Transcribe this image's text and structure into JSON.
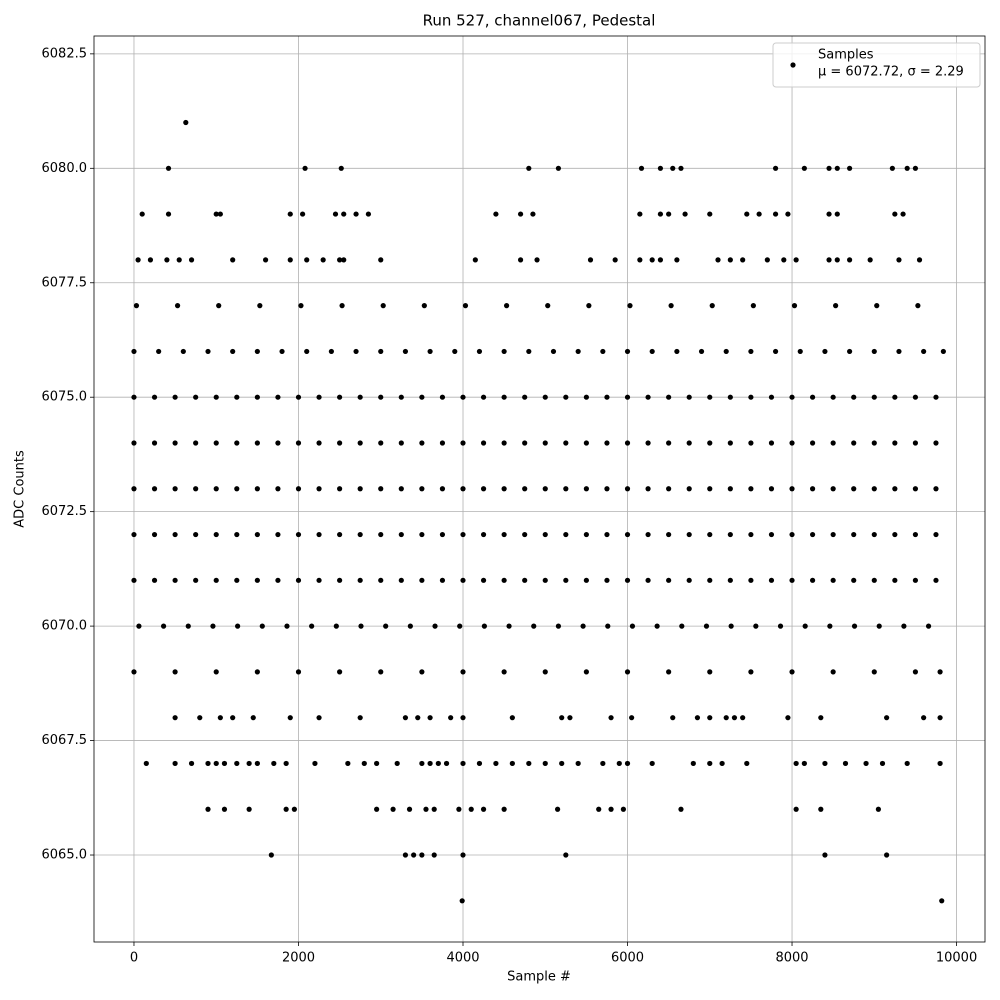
{
  "chart_data": {
    "type": "scatter",
    "title": "Run 527, channel067, Pedestal",
    "x_label": "Sample #",
    "y_label": "ADC Counts",
    "xlim": [
      -486,
      10346
    ],
    "ylim": [
      6063.1,
      6082.89
    ],
    "xticks": [
      0,
      2000,
      4000,
      6000,
      8000,
      10000
    ],
    "yticks": [
      {
        "value": 6065,
        "label": "6065.0"
      },
      {
        "value": 6067.5,
        "label": "6067.5"
      },
      {
        "value": 6070,
        "label": "6070.0"
      },
      {
        "value": 6072.5,
        "label": "6072.5"
      },
      {
        "value": 6075,
        "label": "6075.0"
      },
      {
        "value": 6077.5,
        "label": "6077.5"
      },
      {
        "value": 6080,
        "label": "6080.0"
      },
      {
        "value": 6082.5,
        "label": "6082.5"
      }
    ],
    "grid": true,
    "legend": "upper right",
    "annotation": "μ = 6072.72, σ = 2.29",
    "x": [
      0,
      250,
      500,
      750,
      1000,
      1250,
      1500,
      1750,
      2000,
      2250,
      2500,
      2750,
      3000,
      3250,
      3500,
      3750,
      4000,
      4250,
      4500,
      4750,
      5000,
      5250,
      5500,
      5750,
      6000,
      6250,
      6500,
      6750,
      7000,
      7250,
      7500,
      7750,
      8000,
      8250,
      8500,
      8750,
      9000,
      9250,
      9500,
      9750,
      0,
      250,
      500,
      750,
      1000,
      1250,
      1500,
      1750,
      2000,
      2250,
      2500,
      2750,
      3000,
      3250,
      3500,
      3750,
      4000,
      4250,
      4500,
      4750,
      5000,
      5250,
      5500,
      5750,
      6000,
      6250,
      6500,
      6750,
      7000,
      7250,
      7500,
      7750,
      8000,
      8250,
      8500,
      8750,
      9000,
      9250,
      9500,
      9750,
      0,
      250,
      500,
      750,
      1000,
      1250,
      1500,
      1750,
      2000,
      2250,
      2500,
      2750,
      3000,
      3250,
      3500,
      3750,
      4000,
      4250,
      4500,
      4750,
      5000,
      5250,
      5500,
      5750,
      6000,
      6250,
      6500,
      6750,
      7000,
      7250,
      7500,
      7750,
      8000,
      8250,
      8500,
      8750,
      9000,
      9250,
      9500,
      9750,
      0,
      250,
      500,
      750,
      1000,
      1250,
      1500,
      1750,
      2000,
      2250,
      2500,
      2750,
      3000,
      3250,
      3500,
      3750,
      4000,
      4250,
      4500,
      4750,
      5000,
      5250,
      5500,
      5750,
      6000,
      6250,
      6500,
      6750,
      7000,
      7250,
      7500,
      7750,
      8000,
      8250,
      8500,
      8750,
      9000,
      9250,
      9500,
      9750,
      0,
      250,
      500,
      750,
      1000,
      1250,
      1500,
      1750,
      2000,
      2250,
      2500,
      2750,
      3000,
      3250,
      3500,
      3750,
      4000,
      4250,
      4500,
      4750,
      5000,
      5250,
      5500,
      5750,
      6000,
      6250,
      6500,
      6750,
      7000,
      7250,
      7500,
      7750,
      8000,
      8250,
      8500,
      8750,
      9000,
      9250,
      9500,
      9750,
      0,
      300,
      600,
      900,
      1200,
      1500,
      1800,
      2100,
      2400,
      2700,
      3000,
      3300,
      3600,
      3900,
      4200,
      4500,
      4800,
      5100,
      5400,
      5700,
      6000,
      6300,
      6600,
      6900,
      7200,
      7500,
      7800,
      8100,
      8400,
      8700,
      9000,
      9300,
      9600,
      9840,
      60,
      360,
      660,
      960,
      1260,
      1560,
      1860,
      2160,
      2460,
      2760,
      3060,
      3360,
      3660,
      3960,
      4260,
      4560,
      4860,
      5160,
      5460,
      5760,
      6060,
      6360,
      6660,
      6960,
      7260,
      7560,
      7860,
      8160,
      8460,
      8760,
      9060,
      9360,
      9660,
      0,
      500,
      1000,
      1500,
      2000,
      2500,
      3000,
      3500,
      4000,
      4500,
      5000,
      5500,
      6000,
      6500,
      7000,
      7500,
      8000,
      8500,
      9000,
      9500,
      9800,
      30,
      530,
      1030,
      1530,
      2030,
      2530,
      3030,
      3530,
      4030,
      4530,
      5030,
      5530,
      6030,
      6530,
      7030,
      7530,
      8030,
      8530,
      9030,
      9530,
      50,
      200,
      400,
      550,
      700,
      1200,
      1600,
      1900,
      2100,
      2300,
      2500,
      2550,
      3000,
      4150,
      4700,
      4900,
      5550,
      5850,
      6150,
      6300,
      6400,
      6600,
      7100,
      7250,
      7400,
      7700,
      7900,
      8050,
      8450,
      8550,
      8700,
      8950,
      9300,
      9550,
      100,
      420,
      1000,
      1050,
      1900,
      2050,
      2450,
      2550,
      2700,
      2850,
      4400,
      4700,
      4850,
      6150,
      6400,
      6500,
      6700,
      7000,
      7450,
      7600,
      7800,
      7950,
      8450,
      8550,
      9250,
      9350,
      420,
      2080,
      2520,
      4800,
      5160,
      6170,
      6400,
      6550,
      6650,
      7800,
      8150,
      8450,
      8550,
      8700,
      9220,
      9400,
      9500,
      630,
      500,
      800,
      1050,
      1200,
      1450,
      1900,
      2250,
      2750,
      3300,
      3450,
      3600,
      3850,
      4000,
      4600,
      5200,
      5300,
      5800,
      6050,
      6550,
      6850,
      7000,
      7200,
      7300,
      7400,
      7950,
      8350,
      9150,
      9600,
      9800,
      150,
      500,
      700,
      900,
      1000,
      1100,
      1250,
      1400,
      1500,
      1700,
      1850,
      2200,
      2600,
      2800,
      2950,
      3200,
      3500,
      3600,
      3700,
      3800,
      4000,
      4200,
      4400,
      4600,
      4800,
      5000,
      5200,
      5400,
      5700,
      5900,
      6000,
      6300,
      6800,
      7000,
      7150,
      7450,
      8050,
      8150,
      8400,
      8650,
      8900,
      9100,
      9400,
      9800,
      900,
      1100,
      1400,
      1850,
      1950,
      2950,
      3150,
      3350,
      3550,
      3650,
      3950,
      4100,
      4250,
      4500,
      5150,
      5650,
      5800,
      5950,
      6650,
      8050,
      8350,
      9050,
      1670,
      3300,
      3400,
      3500,
      3650,
      4000,
      5250,
      8400,
      9150,
      3990,
      9820
    ],
    "series": [
      {
        "name": "Samples",
        "color": "#000000",
        "values": [
          6071,
          6071,
          6071,
          6071,
          6071,
          6071,
          6071,
          6071,
          6071,
          6071,
          6071,
          6071,
          6071,
          6071,
          6071,
          6071,
          6071,
          6071,
          6071,
          6071,
          6071,
          6071,
          6071,
          6071,
          6071,
          6071,
          6071,
          6071,
          6071,
          6071,
          6071,
          6071,
          6071,
          6071,
          6071,
          6071,
          6071,
          6071,
          6071,
          6071,
          6072,
          6072,
          6072,
          6072,
          6072,
          6072,
          6072,
          6072,
          6072,
          6072,
          6072,
          6072,
          6072,
          6072,
          6072,
          6072,
          6072,
          6072,
          6072,
          6072,
          6072,
          6072,
          6072,
          6072,
          6072,
          6072,
          6072,
          6072,
          6072,
          6072,
          6072,
          6072,
          6072,
          6072,
          6072,
          6072,
          6072,
          6072,
          6072,
          6072,
          6073,
          6073,
          6073,
          6073,
          6073,
          6073,
          6073,
          6073,
          6073,
          6073,
          6073,
          6073,
          6073,
          6073,
          6073,
          6073,
          6073,
          6073,
          6073,
          6073,
          6073,
          6073,
          6073,
          6073,
          6073,
          6073,
          6073,
          6073,
          6073,
          6073,
          6073,
          6073,
          6073,
          6073,
          6073,
          6073,
          6073,
          6073,
          6073,
          6073,
          6074,
          6074,
          6074,
          6074,
          6074,
          6074,
          6074,
          6074,
          6074,
          6074,
          6074,
          6074,
          6074,
          6074,
          6074,
          6074,
          6074,
          6074,
          6074,
          6074,
          6074,
          6074,
          6074,
          6074,
          6074,
          6074,
          6074,
          6074,
          6074,
          6074,
          6074,
          6074,
          6074,
          6074,
          6074,
          6074,
          6074,
          6074,
          6074,
          6074,
          6075,
          6075,
          6075,
          6075,
          6075,
          6075,
          6075,
          6075,
          6075,
          6075,
          6075,
          6075,
          6075,
          6075,
          6075,
          6075,
          6075,
          6075,
          6075,
          6075,
          6075,
          6075,
          6075,
          6075,
          6075,
          6075,
          6075,
          6075,
          6075,
          6075,
          6075,
          6075,
          6075,
          6075,
          6075,
          6075,
          6075,
          6075,
          6075,
          6075,
          6076,
          6076,
          6076,
          6076,
          6076,
          6076,
          6076,
          6076,
          6076,
          6076,
          6076,
          6076,
          6076,
          6076,
          6076,
          6076,
          6076,
          6076,
          6076,
          6076,
          6076,
          6076,
          6076,
          6076,
          6076,
          6076,
          6076,
          6076,
          6076,
          6076,
          6076,
          6076,
          6076,
          6076,
          6070,
          6070,
          6070,
          6070,
          6070,
          6070,
          6070,
          6070,
          6070,
          6070,
          6070,
          6070,
          6070,
          6070,
          6070,
          6070,
          6070,
          6070,
          6070,
          6070,
          6070,
          6070,
          6070,
          6070,
          6070,
          6070,
          6070,
          6070,
          6070,
          6070,
          6070,
          6070,
          6070,
          6069,
          6069,
          6069,
          6069,
          6069,
          6069,
          6069,
          6069,
          6069,
          6069,
          6069,
          6069,
          6069,
          6069,
          6069,
          6069,
          6069,
          6069,
          6069,
          6069,
          6069,
          6077,
          6077,
          6077,
          6077,
          6077,
          6077,
          6077,
          6077,
          6077,
          6077,
          6077,
          6077,
          6077,
          6077,
          6077,
          6077,
          6077,
          6077,
          6077,
          6077,
          6078,
          6078,
          6078,
          6078,
          6078,
          6078,
          6078,
          6078,
          6078,
          6078,
          6078,
          6078,
          6078,
          6078,
          6078,
          6078,
          6078,
          6078,
          6078,
          6078,
          6078,
          6078,
          6078,
          6078,
          6078,
          6078,
          6078,
          6078,
          6078,
          6078,
          6078,
          6078,
          6078,
          6078,
          6079,
          6079,
          6079,
          6079,
          6079,
          6079,
          6079,
          6079,
          6079,
          6079,
          6079,
          6079,
          6079,
          6079,
          6079,
          6079,
          6079,
          6079,
          6079,
          6079,
          6079,
          6079,
          6079,
          6079,
          6079,
          6079,
          6080,
          6080,
          6080,
          6080,
          6080,
          6080,
          6080,
          6080,
          6080,
          6080,
          6080,
          6080,
          6080,
          6080,
          6080,
          6080,
          6080,
          6081,
          6068,
          6068,
          6068,
          6068,
          6068,
          6068,
          6068,
          6068,
          6068,
          6068,
          6068,
          6068,
          6068,
          6068,
          6068,
          6068,
          6068,
          6068,
          6068,
          6068,
          6068,
          6068,
          6068,
          6068,
          6068,
          6068,
          6068,
          6068,
          6068,
          6067,
          6067,
          6067,
          6067,
          6067,
          6067,
          6067,
          6067,
          6067,
          6067,
          6067,
          6067,
          6067,
          6067,
          6067,
          6067,
          6067,
          6067,
          6067,
          6067,
          6067,
          6067,
          6067,
          6067,
          6067,
          6067,
          6067,
          6067,
          6067,
          6067,
          6067,
          6067,
          6067,
          6067,
          6067,
          6067,
          6067,
          6067,
          6067,
          6067,
          6067,
          6067,
          6067,
          6067,
          6066,
          6066,
          6066,
          6066,
          6066,
          6066,
          6066,
          6066,
          6066,
          6066,
          6066,
          6066,
          6066,
          6066,
          6066,
          6066,
          6066,
          6066,
          6066,
          6066,
          6066,
          6066,
          6065,
          6065,
          6065,
          6065,
          6065,
          6065,
          6065,
          6065,
          6065,
          6064,
          6064
        ]
      }
    ]
  }
}
